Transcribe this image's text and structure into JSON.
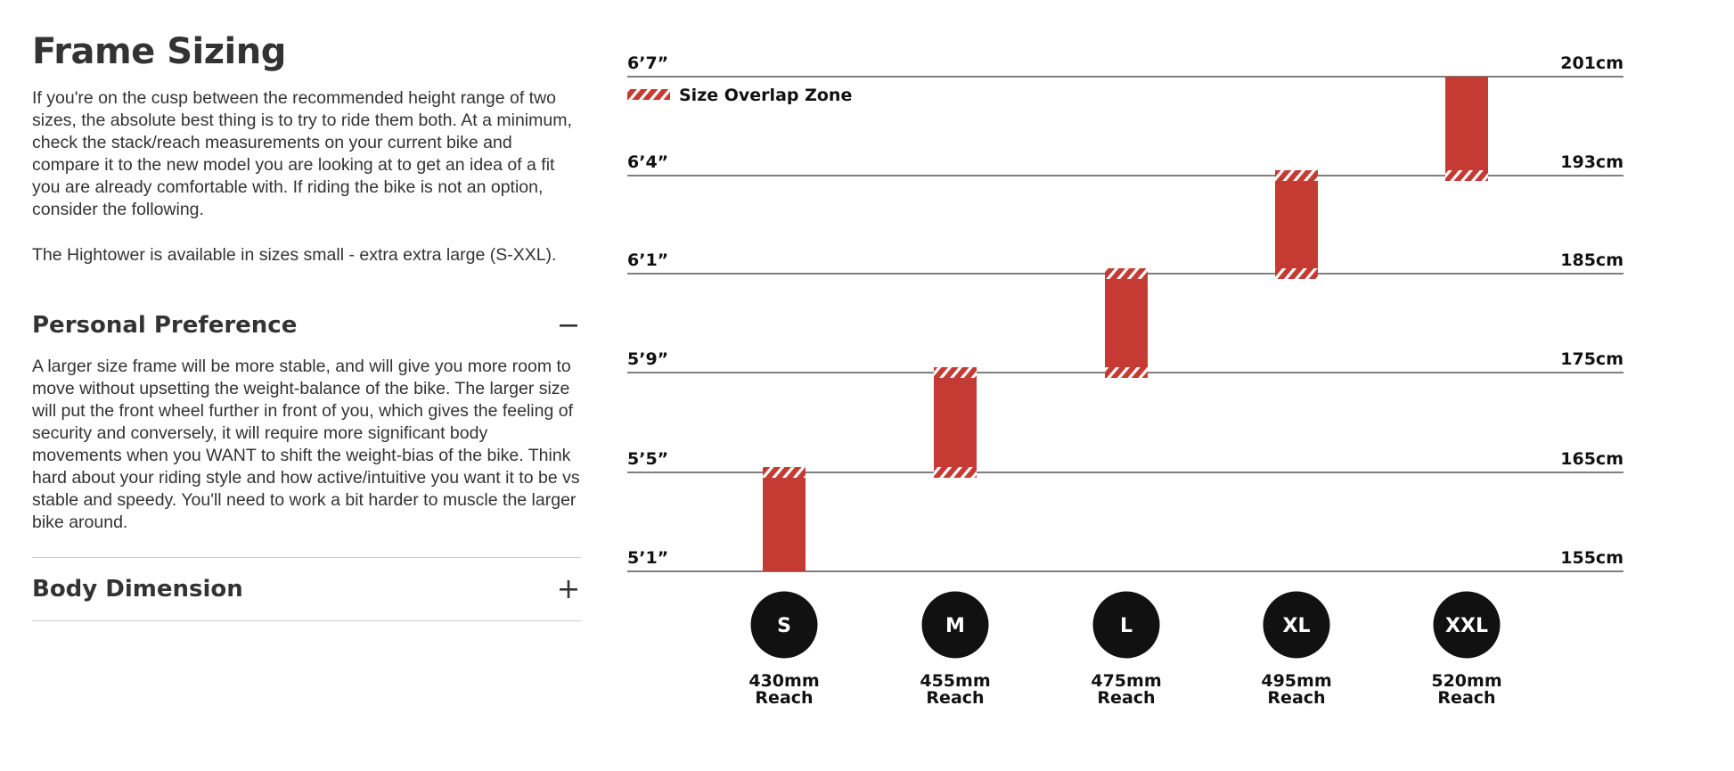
{
  "page": {
    "title": "Frame Sizing",
    "intro": "If you're on the cusp between the recommended height range of two sizes, the absolute best thing is to try to ride them both. At a minimum, check the stack/reach measurements on your current bike and compare it to the new model you are looking at to get an idea of a fit you are already comfortable with. If riding the bike is not an option, consider the following.",
    "availability": "The Hightower is available in sizes small - extra extra large (S-XXL)."
  },
  "accordion": [
    {
      "heading": "Personal Preference",
      "state": "expanded",
      "icon": "minus-icon",
      "body": "A larger size frame will be more stable, and will give you more room to move without upsetting the weight-balance of the bike. The larger size will put the front wheel further in front of you, which gives the feeling of security and conversely, it will require more significant body movements when you WANT to shift the weight-bias of the bike. Think hard about your riding style and how active/intuitive you want it to be vs stable and speedy. You'll need to work a bit harder to muscle the larger bike around."
    },
    {
      "heading": "Body Dimension",
      "state": "collapsed",
      "icon": "plus-icon"
    }
  ],
  "chart_data": {
    "type": "bar",
    "legend": {
      "label": "Size Overlap Zone",
      "placement": "top-left"
    },
    "colors": {
      "bar": "#c53a32",
      "hatch": "#ffffff",
      "badge": "#111111",
      "badge_text": "#ffffff",
      "gridline": "#555555"
    },
    "y_ticks": [
      {
        "ft": "5’1”",
        "cm": "155cm"
      },
      {
        "ft": "5’5”",
        "cm": "165cm"
      },
      {
        "ft": "5’9”",
        "cm": "175cm"
      },
      {
        "ft": "6’1”",
        "cm": "185cm"
      },
      {
        "ft": "6’4”",
        "cm": "193cm"
      },
      {
        "ft": "6’7”",
        "cm": "201cm"
      }
    ],
    "categories": [
      "S",
      "M",
      "L",
      "XL",
      "XXL"
    ],
    "ranges": [
      {
        "size": "S",
        "from_tick": 0,
        "to_tick": 1,
        "overlap_bottom": false,
        "overlap_top": true
      },
      {
        "size": "M",
        "from_tick": 1,
        "to_tick": 2,
        "overlap_bottom": true,
        "overlap_top": true
      },
      {
        "size": "L",
        "from_tick": 2,
        "to_tick": 3,
        "overlap_bottom": true,
        "overlap_top": true
      },
      {
        "size": "XL",
        "from_tick": 3,
        "to_tick": 4,
        "overlap_bottom": true,
        "overlap_top": true
      },
      {
        "size": "XXL",
        "from_tick": 4,
        "to_tick": 5,
        "overlap_bottom": true,
        "overlap_top": false
      }
    ],
    "reach": [
      {
        "value": "430mm",
        "label": "Reach"
      },
      {
        "value": "455mm",
        "label": "Reach"
      },
      {
        "value": "475mm",
        "label": "Reach"
      },
      {
        "value": "495mm",
        "label": "Reach"
      },
      {
        "value": "520mm",
        "label": "Reach"
      }
    ]
  }
}
